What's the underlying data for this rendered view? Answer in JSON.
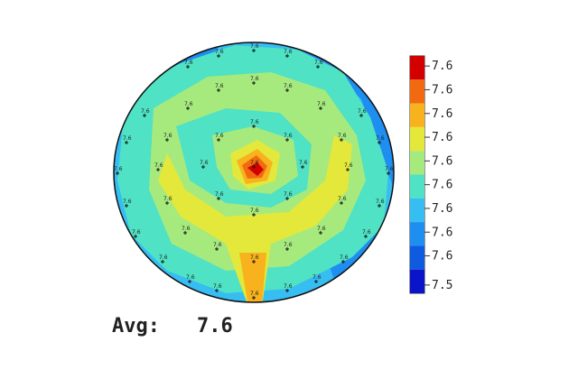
{
  "colorbar": {
    "colors": [
      "#d40000",
      "#f26a10",
      "#f7b21e",
      "#e4e83a",
      "#a6ea7e",
      "#4fe2c4",
      "#36bdf2",
      "#1e8ef0",
      "#0e5be0",
      "#0a14c8"
    ],
    "labels": [
      "7.6",
      "7.6",
      "7.6",
      "7.6",
      "7.6",
      "7.6",
      "7.6",
      "7.6",
      "7.6",
      "7.5"
    ]
  },
  "average": {
    "label": "Avg:",
    "value": "7.6"
  },
  "points": [
    "7.6",
    "7.6",
    "7.6",
    "7.6",
    "7.6",
    "7.6",
    "7.6",
    "7.6",
    "7.6",
    "7.6",
    "7.6",
    "7.6",
    "7.6",
    "7.6",
    "7.6",
    "7.6",
    "7.6",
    "7.6",
    "7.6",
    "7.6",
    "7.6",
    "7.6",
    "7.6",
    "7.6",
    "7.6",
    "7.6",
    "7.6",
    "7.6",
    "7.6",
    "7.6",
    "7.6",
    "7.6",
    "7.6",
    "7.6",
    "7.6",
    "7.6",
    "7.6",
    "7.6",
    "7.6",
    "7.6",
    "7.6",
    "7.6",
    "7.6",
    "7.6",
    "7.6",
    "7.6",
    "7.6"
  ]
}
